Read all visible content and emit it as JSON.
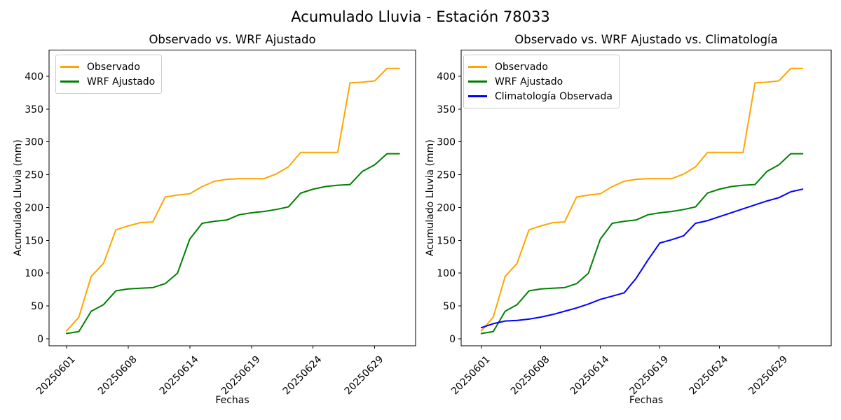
{
  "figure": {
    "suptitle": "Acumulado Lluvia - Estación 78033",
    "background_color": "#ffffff",
    "text_color": "#000000",
    "axis_color": "#000000"
  },
  "chart_data": [
    {
      "type": "line",
      "title": "Observado vs. WRF Ajustado",
      "xlabel": "Fechas",
      "ylabel": "Acumulado Lluvia (mm)",
      "n_points": 28,
      "x_tick_positions": [
        0,
        5,
        10,
        15,
        20,
        25
      ],
      "x_tick_labels": [
        "20250601",
        "20250608",
        "20250614",
        "20250619",
        "20250624",
        "20250629"
      ],
      "x_tick_rotation": 45,
      "yticks": [
        0,
        50,
        100,
        150,
        200,
        250,
        300,
        350,
        400
      ],
      "ylim": [
        -10.7,
        440
      ],
      "grid": false,
      "legend_position": "upper left",
      "series": [
        {
          "name": "Observado",
          "color": "#FFA500",
          "values": [
            12,
            33,
            95,
            115,
            166,
            172,
            177,
            178,
            216,
            219,
            221,
            232,
            240,
            243,
            244,
            244,
            244,
            251,
            262,
            284,
            284,
            284,
            284,
            390,
            391,
            393,
            412,
            412
          ]
        },
        {
          "name": "WRF Ajustado",
          "color": "#008000",
          "values": [
            8,
            11,
            42,
            52,
            73,
            76,
            77,
            78,
            84,
            100,
            152,
            176,
            179,
            181,
            189,
            192,
            194,
            197,
            201,
            222,
            228,
            232,
            234,
            235,
            255,
            265,
            282,
            282
          ]
        }
      ]
    },
    {
      "type": "line",
      "title": "Observado vs. WRF Ajustado vs. Climatología",
      "xlabel": "Fechas",
      "ylabel": "Acumulado Lluvia (mm)",
      "n_points": 28,
      "x_tick_positions": [
        0,
        5,
        10,
        15,
        20,
        25
      ],
      "x_tick_labels": [
        "20250601",
        "20250608",
        "20250614",
        "20250619",
        "20250624",
        "20250629"
      ],
      "x_tick_rotation": 45,
      "yticks": [
        0,
        50,
        100,
        150,
        200,
        250,
        300,
        350,
        400
      ],
      "ylim": [
        -10.7,
        440
      ],
      "grid": false,
      "legend_position": "upper left",
      "series": [
        {
          "name": "Observado",
          "color": "#FFA500",
          "values": [
            12,
            33,
            95,
            115,
            166,
            172,
            177,
            178,
            216,
            219,
            221,
            232,
            240,
            243,
            244,
            244,
            244,
            251,
            262,
            284,
            284,
            284,
            284,
            390,
            391,
            393,
            412,
            412
          ]
        },
        {
          "name": "WRF Ajustado",
          "color": "#008000",
          "values": [
            8,
            11,
            42,
            52,
            73,
            76,
            77,
            78,
            84,
            100,
            152,
            176,
            179,
            181,
            189,
            192,
            194,
            197,
            201,
            222,
            228,
            232,
            234,
            235,
            255,
            265,
            282,
            282
          ]
        },
        {
          "name": "Climatología Observada",
          "color": "#0000FF",
          "values": [
            17,
            23,
            27,
            28,
            30,
            33,
            37,
            42,
            47,
            53,
            60,
            65,
            70,
            92,
            120,
            146,
            151,
            157,
            176,
            180,
            186,
            192,
            198,
            204,
            210,
            215,
            224,
            228
          ]
        }
      ]
    }
  ]
}
